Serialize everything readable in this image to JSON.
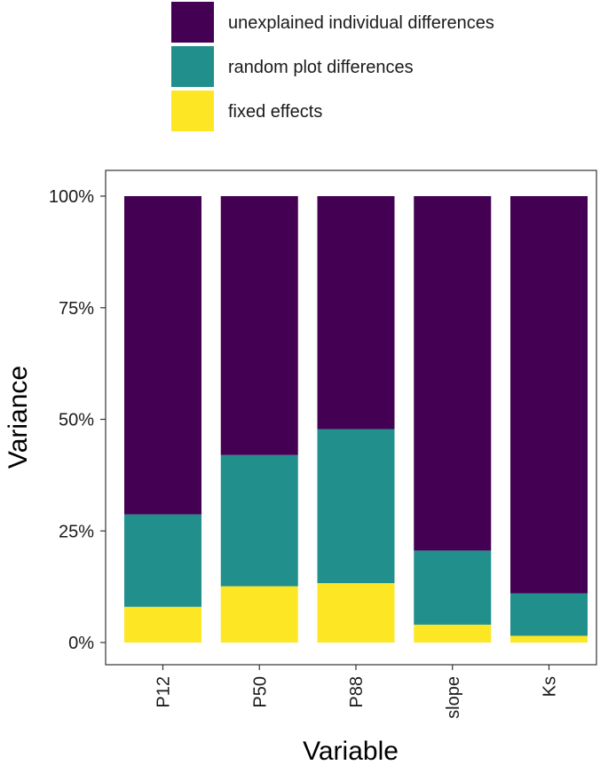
{
  "chart_data": {
    "type": "bar",
    "stacked": true,
    "xlabel": "Variable",
    "ylabel": "Variance",
    "ylim": [
      0,
      100
    ],
    "y_ticks": [
      0,
      25,
      50,
      75,
      100
    ],
    "y_tick_labels": [
      "0%",
      "25%",
      "50%",
      "75%",
      "100%"
    ],
    "categories": [
      "P12",
      "P50",
      "P88",
      "slope",
      "Ks"
    ],
    "series": [
      {
        "name": "fixed effects",
        "color": "#fde725",
        "values": [
          8,
          12.6,
          13.3,
          4,
          1.5
        ]
      },
      {
        "name": "random plot differences",
        "color": "#21908c",
        "values": [
          20.7,
          29.4,
          34.5,
          16.6,
          9.5
        ]
      },
      {
        "name": "unexplained individual differences",
        "color": "#440154",
        "values": [
          71.3,
          58,
          52.2,
          79.4,
          89
        ]
      }
    ],
    "legend": {
      "position": "top",
      "order": [
        "unexplained individual differences",
        "random plot differences",
        "fixed effects"
      ]
    },
    "grid": false
  }
}
